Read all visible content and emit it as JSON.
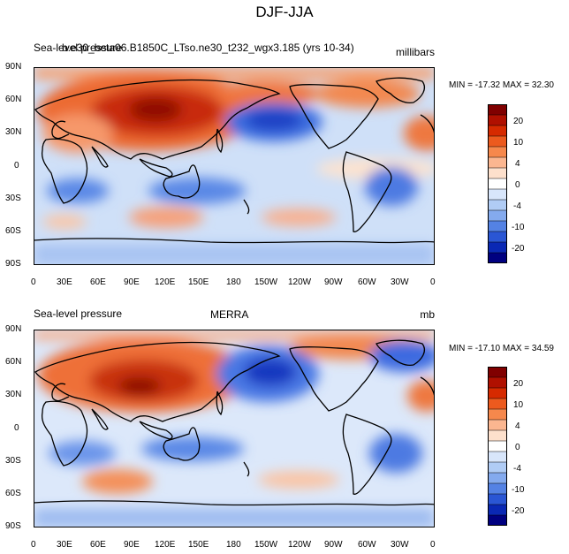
{
  "title": "DJF-JJA",
  "panels": [
    {
      "left_label": "Sea-level pressure",
      "center_label": "b.e30_beta06.B1850C_LTso.ne30_t232_wgx3.185 (yrs 10-34)",
      "right_label": "millibars",
      "stats": "MIN = -17.32  MAX =  32.30",
      "lat_labels": [
        "90N",
        "60N",
        "30N",
        "0",
        "30S",
        "60S",
        "90S"
      ],
      "lon_labels": [
        "0",
        "30E",
        "60E",
        "90E",
        "120E",
        "150E",
        "180",
        "150W",
        "120W",
        "90W",
        "60W",
        "30W",
        "0"
      ],
      "colorbar_labels": [
        "20",
        "10",
        "4",
        "0",
        "-4",
        "-10",
        "-20"
      ]
    },
    {
      "left_label": "Sea-level pressure",
      "center_label": "MERRA",
      "right_label": "mb",
      "stats": "MIN = -17.10  MAX =  34.59",
      "lat_labels": [
        "90N",
        "60N",
        "30N",
        "0",
        "30S",
        "60S",
        "90S"
      ],
      "lon_labels": [
        "0",
        "30E",
        "60E",
        "90E",
        "120E",
        "150E",
        "180",
        "150W",
        "120W",
        "90W",
        "60W",
        "30W",
        "0"
      ],
      "colorbar_labels": [
        "20",
        "10",
        "4",
        "0",
        "-4",
        "-10",
        "-20"
      ]
    }
  ],
  "colors": {
    "colorbar": [
      "#800000",
      "#b01000",
      "#d62a00",
      "#ec5a1e",
      "#f6884c",
      "#fbb690",
      "#fde0cc",
      "#ffffff",
      "#d8e6fb",
      "#b0ccf5",
      "#84aaee",
      "#5482e4",
      "#2a56d4",
      "#0a28b4",
      "#000080"
    ]
  }
}
